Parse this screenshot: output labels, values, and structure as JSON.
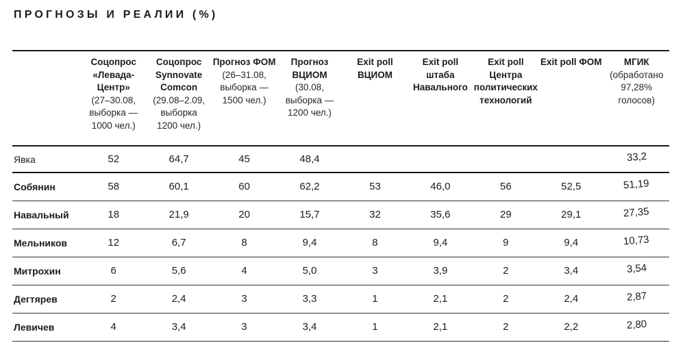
{
  "page": {
    "title": "ПРОГНОЗЫ И РЕАЛИИ (%)"
  },
  "colors": {
    "background": "#ffffff",
    "text": "#1c1c1c",
    "rule_strong": "#161616",
    "rule_thin": "#303030"
  },
  "table": {
    "columns": [
      {
        "title": "Соцопрос «Левада-Центр»",
        "sub": "(27–30.08, выборка — 1000 чел.)"
      },
      {
        "title": "Соцопрос Synnovate Comcon",
        "sub": "(29.08–2.09, выборка 1200 чел.)"
      },
      {
        "title": "Прогноз ФОМ",
        "sub": "(26–31.08, выборка — 1500 чел.)"
      },
      {
        "title": "Прогноз ВЦИОМ",
        "sub": "(30.08, выборка — 1200 чел.)"
      },
      {
        "title": "Exit poll ВЦИОМ",
        "sub": ""
      },
      {
        "title": "Exit poll штаба Навального",
        "sub": ""
      },
      {
        "title": "Exit poll Центра полити­ческих технологий",
        "sub": ""
      },
      {
        "title": "Exit poll ФОМ",
        "sub": ""
      },
      {
        "title": "МГИК",
        "sub": "(обработано 97,28% голосов)"
      }
    ],
    "rows": [
      {
        "label": "Явка",
        "values": [
          "52",
          "64,7",
          "45",
          "48,4",
          "",
          "",
          "",
          "",
          "33,2"
        ]
      },
      {
        "label": "Собянин",
        "values": [
          "58",
          "60,1",
          "60",
          "62,2",
          "53",
          "46,0",
          "56",
          "52,5",
          "51,19"
        ]
      },
      {
        "label": "Навальный",
        "values": [
          "18",
          "21,9",
          "20",
          "15,7",
          "32",
          "35,6",
          "29",
          "29,1",
          "27,35"
        ]
      },
      {
        "label": "Мельников",
        "values": [
          "12",
          "6,7",
          "8",
          "9,4",
          "8",
          "9,4",
          "9",
          "9,4",
          "10,73"
        ]
      },
      {
        "label": "Митрохин",
        "values": [
          "6",
          "5,6",
          "4",
          "5,0",
          "3",
          "3,9",
          "2",
          "3,4",
          "3,54"
        ]
      },
      {
        "label": "Дегтярев",
        "values": [
          "2",
          "2,4",
          "3",
          "3,3",
          "1",
          "2,1",
          "2",
          "2,4",
          "2,87"
        ]
      },
      {
        "label": "Левичев",
        "values": [
          "4",
          "3,4",
          "3",
          "3,4",
          "1",
          "2,1",
          "2",
          "2,2",
          "2,80"
        ]
      }
    ]
  },
  "chart_data": {
    "type": "table",
    "title": "ПРОГНОЗЫ И РЕАЛИИ (%)",
    "columns": [
      "Соцопрос «Левада-Центр» (27–30.08, выборка — 1000 чел.)",
      "Соцопрос Synnovate Comcon (29.08–2.09, выборка 1200 чел.)",
      "Прогноз ФОМ (26–31.08, выборка — 1500 чел.)",
      "Прогноз ВЦИОМ (30.08, выборка — 1200 чел.)",
      "Exit poll ВЦИОМ",
      "Exit poll штаба Навального",
      "Exit poll Центра политических технологий",
      "Exit poll ФОМ",
      "МГИК (обработано 97,28% голосов)"
    ],
    "row_labels": [
      "Явка",
      "Собянин",
      "Навальный",
      "Мельников",
      "Митрохин",
      "Дегтярев",
      "Левичев"
    ],
    "values": [
      [
        52,
        64.7,
        45,
        48.4,
        null,
        null,
        null,
        null,
        33.2
      ],
      [
        58,
        60.1,
        60,
        62.2,
        53,
        46.0,
        56,
        52.5,
        51.19
      ],
      [
        18,
        21.9,
        20,
        15.7,
        32,
        35.6,
        29,
        29.1,
        27.35
      ],
      [
        12,
        6.7,
        8,
        9.4,
        8,
        9.4,
        9,
        9.4,
        10.73
      ],
      [
        6,
        5.6,
        4,
        5.0,
        3,
        3.9,
        2,
        3.4,
        3.54
      ],
      [
        2,
        2.4,
        3,
        3.3,
        1,
        2.1,
        2,
        2.4,
        2.87
      ],
      [
        4,
        3.4,
        3,
        3.4,
        1,
        2.1,
        2,
        2.2,
        2.8
      ]
    ]
  }
}
